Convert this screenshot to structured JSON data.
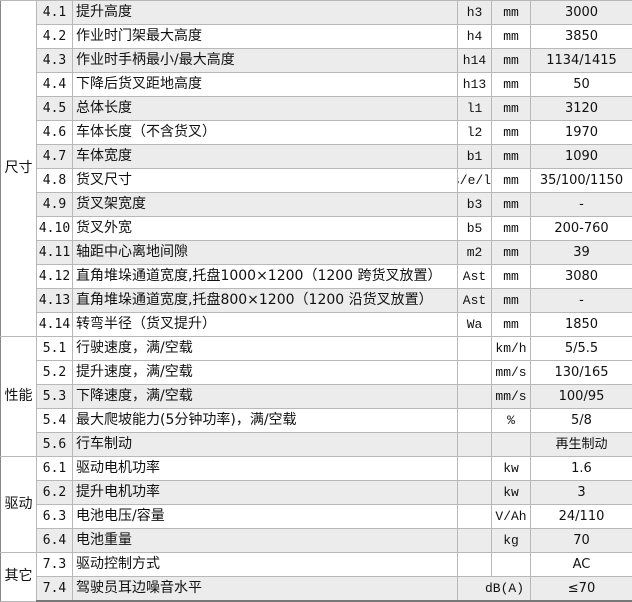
{
  "sections": [
    {
      "label": "尺寸",
      "rows": [
        {
          "num": "4.1",
          "desc": "提升高度",
          "code": "h3",
          "unit": "mm",
          "value": "3000",
          "shade": true
        },
        {
          "num": "4.2",
          "desc": "作业时门架最大高度",
          "code": "h4",
          "unit": "mm",
          "value": "3850",
          "shade": false
        },
        {
          "num": "4.3",
          "desc": "作业时手柄最小/最大高度",
          "code": "h14",
          "unit": "mm",
          "value": "1134/1415",
          "shade": true
        },
        {
          "num": "4.4",
          "desc": "下降后货叉距地高度",
          "code": "h13",
          "unit": "mm",
          "value": "50",
          "shade": false
        },
        {
          "num": "4.5",
          "desc": "总体长度",
          "code": "l1",
          "unit": "mm",
          "value": "3120",
          "shade": true
        },
        {
          "num": "4.6",
          "desc": "车体长度（不含货叉）",
          "code": "l2",
          "unit": "mm",
          "value": "1970",
          "shade": false
        },
        {
          "num": "4.7",
          "desc": "车体宽度",
          "code": "b1",
          "unit": "mm",
          "value": "1090",
          "shade": true
        },
        {
          "num": "4.8",
          "desc": "货叉尺寸",
          "code": "s/e/l",
          "unit": "mm",
          "value": "35/100/1150",
          "shade": false
        },
        {
          "num": "4.9",
          "desc": "货叉架宽度",
          "code": "b3",
          "unit": "mm",
          "value": "-",
          "shade": true
        },
        {
          "num": "4.10",
          "desc": "货叉外宽",
          "code": "b5",
          "unit": "mm",
          "value": "200-760",
          "shade": false
        },
        {
          "num": "4.11",
          "desc": "轴距中心离地间隙",
          "code": "m2",
          "unit": "mm",
          "value": "39",
          "shade": true
        },
        {
          "num": "4.12",
          "desc": "直角堆垛通道宽度,托盘1000×1200（1200 跨货叉放置）",
          "code": "Ast",
          "unit": "mm",
          "value": "3080",
          "shade": false
        },
        {
          "num": "4.13",
          "desc": "直角堆垛通道宽度,托盘800×1200（1200 沿货叉放置）",
          "code": "Ast",
          "unit": "mm",
          "value": "-",
          "shade": true
        },
        {
          "num": "4.14",
          "desc": "转弯半径（货叉提升）",
          "code": "Wa",
          "unit": "mm",
          "value": "1850",
          "shade": false
        }
      ]
    },
    {
      "label": "性能",
      "rows": [
        {
          "num": "5.1",
          "desc": "行驶速度，满/空载",
          "code": "",
          "unit": "km/h",
          "value": "5/5.5",
          "shade": false
        },
        {
          "num": "5.2",
          "desc": "提升速度，满/空载",
          "code": "",
          "unit": "mm/s",
          "value": "130/165",
          "shade": false
        },
        {
          "num": "5.3",
          "desc": "下降速度，满/空载",
          "code": "",
          "unit": "mm/s",
          "value": "100/95",
          "shade": true
        },
        {
          "num": "5.4",
          "desc": "最大爬坡能力(5分钟功率)，满/空载",
          "code": "",
          "unit": "%",
          "value": "5/8",
          "shade": false
        },
        {
          "num": "5.6",
          "desc": "行车制动",
          "code": "",
          "unit": "",
          "value": "再生制动",
          "shade": true
        }
      ]
    },
    {
      "label": "驱动",
      "rows": [
        {
          "num": "6.1",
          "desc": "驱动电机功率",
          "code": "",
          "unit": "kw",
          "value": "1.6",
          "shade": false
        },
        {
          "num": "6.2",
          "desc": "提升电机功率",
          "code": "",
          "unit": "kw",
          "value": "3",
          "shade": true
        },
        {
          "num": "6.3",
          "desc": "电池电压/容量",
          "code": "",
          "unit": "V/Ah",
          "value": "24/110",
          "shade": false
        },
        {
          "num": "6.4",
          "desc": "电池重量",
          "code": "",
          "unit": "kg",
          "value": "70",
          "shade": true
        }
      ]
    },
    {
      "label": "其它",
      "rows": [
        {
          "num": "7.3",
          "desc": "驱动控制方式",
          "code": "",
          "unit": "",
          "value": "AC",
          "shade": false
        },
        {
          "num": "7.4",
          "desc": "驾驶员耳边噪音水平",
          "code": "",
          "unit": "dB(A)",
          "value": "≤70",
          "shade": true,
          "merged_unit": true
        }
      ]
    }
  ]
}
